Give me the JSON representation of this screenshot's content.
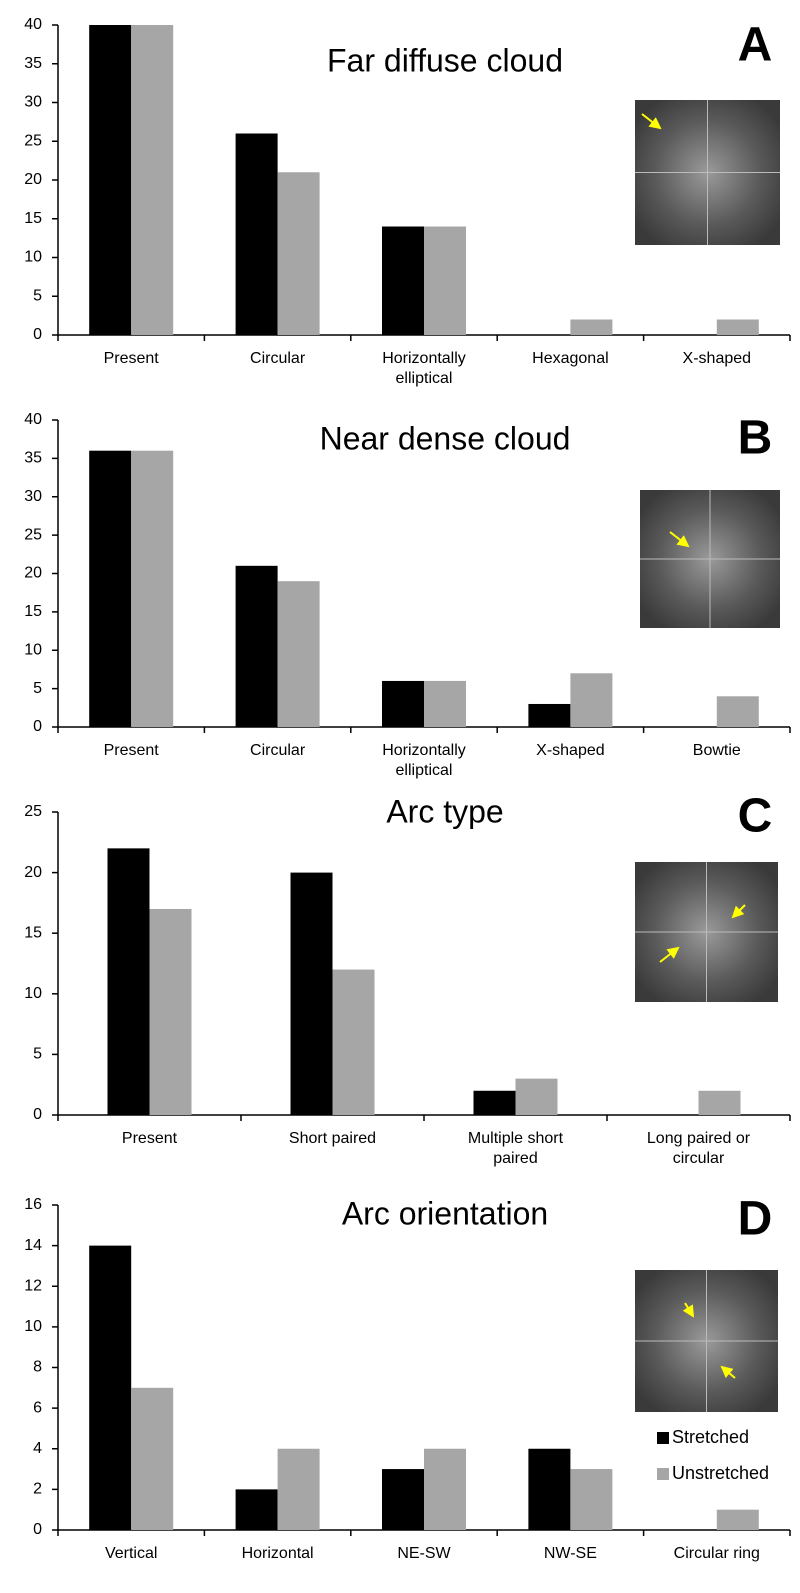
{
  "chart_data": [
    {
      "type": "bar",
      "title": "Far diffuse cloud",
      "panel_label": "A",
      "categories": [
        "Present",
        "Circular",
        "Horizontally elliptical",
        "Hexagonal",
        "X-shaped"
      ],
      "series": [
        {
          "color": "#000000",
          "values": [
            40,
            26,
            14,
            0,
            0
          ]
        },
        {
          "color": "#a6a6a6",
          "values": [
            40,
            21,
            14,
            2,
            2
          ]
        }
      ],
      "ylim": [
        0,
        40
      ],
      "yticks": [
        0,
        5,
        10,
        15,
        20,
        25,
        30,
        35,
        40
      ]
    },
    {
      "type": "bar",
      "title": "Near dense cloud",
      "panel_label": "B",
      "categories": [
        "Present",
        "Circular",
        "Horizontally elliptical",
        "X-shaped",
        "Bowtie"
      ],
      "series": [
        {
          "color": "#000000",
          "values": [
            36,
            21,
            6,
            3,
            0
          ]
        },
        {
          "color": "#a6a6a6",
          "values": [
            36,
            19,
            6,
            7,
            4
          ]
        }
      ],
      "ylim": [
        0,
        40
      ],
      "yticks": [
        0,
        5,
        10,
        15,
        20,
        25,
        30,
        35,
        40
      ]
    },
    {
      "type": "bar",
      "title": "Arc type",
      "panel_label": "C",
      "categories": [
        "Present",
        "Short paired",
        "Multiple short paired",
        "Long paired or circular"
      ],
      "series": [
        {
          "color": "#000000",
          "values": [
            22,
            20,
            2,
            0
          ]
        },
        {
          "color": "#a6a6a6",
          "values": [
            17,
            12,
            3,
            2
          ]
        }
      ],
      "ylim": [
        0,
        25
      ],
      "yticks": [
        0,
        5,
        10,
        15,
        20,
        25
      ]
    },
    {
      "type": "bar",
      "title": "Arc orientation",
      "panel_label": "D",
      "categories": [
        "Vertical",
        "Horizontal",
        "NE-SW",
        "NW-SE",
        "Circular ring"
      ],
      "series": [
        {
          "name": "Stretched",
          "color": "#000000",
          "values": [
            14,
            2,
            3,
            4,
            0
          ]
        },
        {
          "name": "Unstretched",
          "color": "#a6a6a6",
          "values": [
            7,
            4,
            4,
            3,
            1
          ]
        }
      ],
      "ylim": [
        0,
        16
      ],
      "yticks": [
        0,
        2,
        4,
        6,
        8,
        10,
        12,
        14,
        16
      ],
      "legend": "lower right"
    }
  ]
}
